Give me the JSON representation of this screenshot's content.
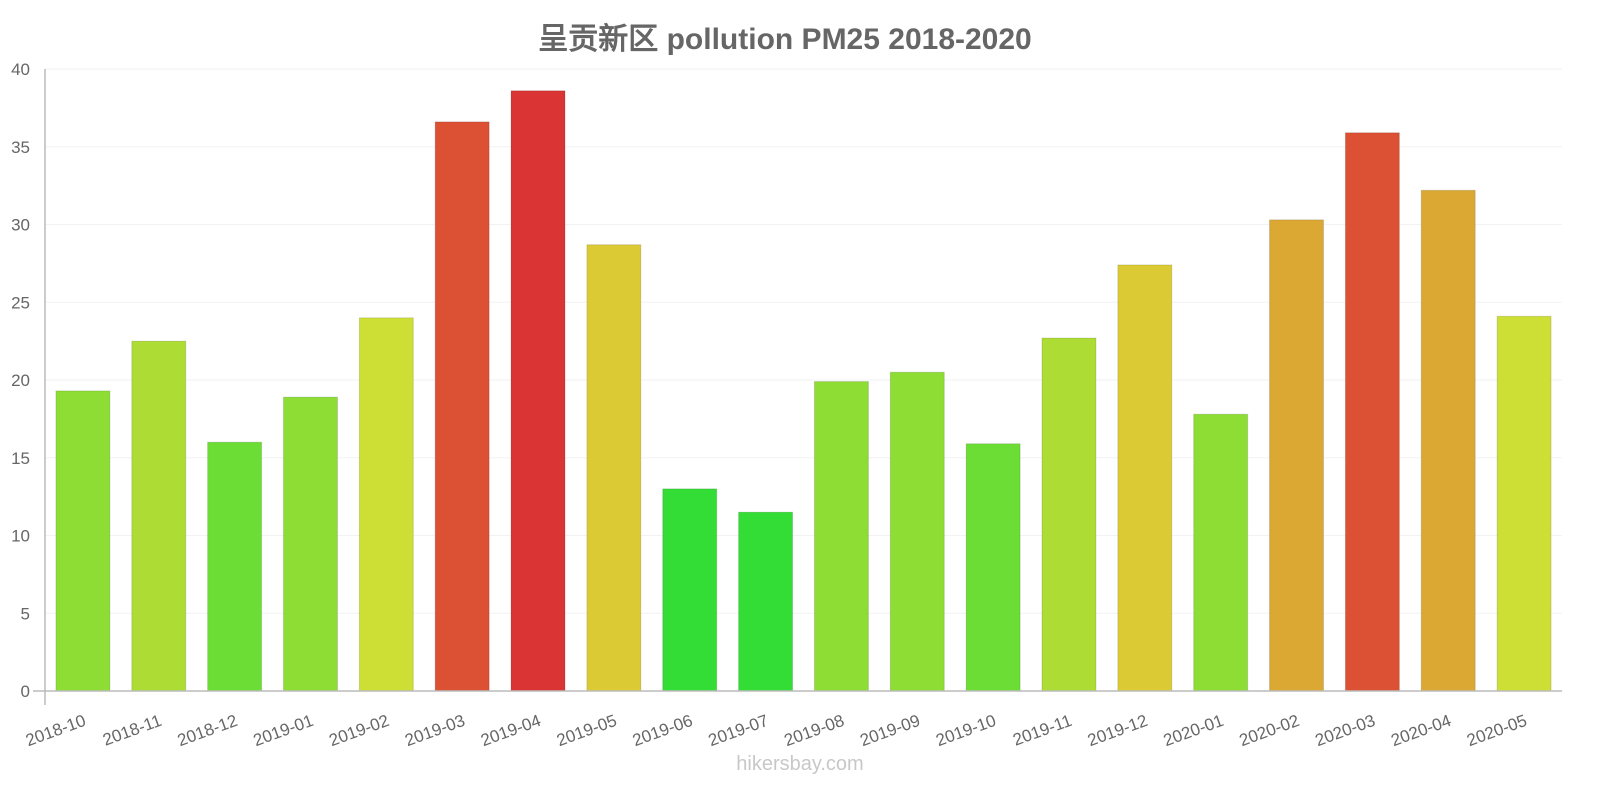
{
  "title": "呈贡新区 pollution PM25 2018-2020",
  "watermark": "hikersbay.com",
  "chart_data": {
    "type": "bar",
    "title": "呈贡新区 pollution PM25 2018-2020",
    "xlabel": "",
    "ylabel": "",
    "ylim": [
      0,
      40
    ],
    "yticks": [
      0,
      5,
      10,
      15,
      20,
      25,
      30,
      35,
      40
    ],
    "grid": true,
    "legend": null,
    "categories": [
      "2018-10",
      "2018-11",
      "2018-12",
      "2019-01",
      "2019-02",
      "2019-03",
      "2019-04",
      "2019-05",
      "2019-06",
      "2019-07",
      "2019-08",
      "2019-09",
      "2019-10",
      "2019-11",
      "2019-12",
      "2020-01",
      "2020-02",
      "2020-03",
      "2020-04",
      "2020-05"
    ],
    "values": [
      19.3,
      22.5,
      16.0,
      18.9,
      24.0,
      36.6,
      38.6,
      28.7,
      13.0,
      11.5,
      19.9,
      20.5,
      15.9,
      22.7,
      27.4,
      17.8,
      30.3,
      35.9,
      32.2,
      24.1
    ],
    "colors": [
      "#8ddd35",
      "#addc35",
      "#6bdd35",
      "#8ddd35",
      "#cdde34",
      "#dc5034",
      "#db3434",
      "#dbca33",
      "#34dd35",
      "#34dd35",
      "#8ddd35",
      "#8ddd35",
      "#6bdd35",
      "#addc35",
      "#dbca33",
      "#8ddd35",
      "#dba833",
      "#dc5034",
      "#dba833",
      "#cdde34"
    ]
  }
}
